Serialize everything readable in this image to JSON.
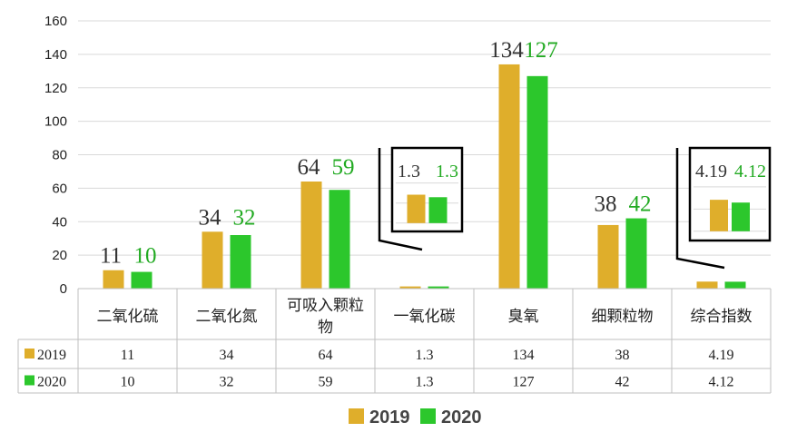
{
  "colors": {
    "2019": "#DFAE2B",
    "2020": "#2CC72C",
    "label_2020": "#22aa22",
    "grid": "#d9d9d9"
  },
  "chart_data": {
    "type": "bar",
    "categories": [
      "二氧化硫",
      "二氧化氮",
      "可吸入颗粒物",
      "一氧化碳",
      "臭氧",
      "细颗粒物",
      "综合指数"
    ],
    "series": [
      {
        "name": "2019",
        "values": [
          11,
          34,
          64,
          1.3,
          134,
          38,
          4.19
        ],
        "labels": [
          "11",
          "34",
          "64",
          "1.3",
          "134",
          "38",
          "4.19"
        ]
      },
      {
        "name": "2020",
        "values": [
          10,
          32,
          59,
          1.3,
          127,
          42,
          4.12
        ],
        "labels": [
          "10",
          "32",
          "59",
          "1.3",
          "127",
          "42",
          "4.12"
        ]
      }
    ],
    "ylim": [
      0,
      160
    ],
    "yticks": [
      "0",
      "20",
      "40",
      "60",
      "80",
      "100",
      "120",
      "140",
      "160"
    ],
    "grid": true,
    "legend_position": "bottom",
    "data_table": true,
    "insets": [
      {
        "category": "一氧化碳",
        "labels": [
          "1.3",
          "1.3"
        ]
      },
      {
        "category": "综合指数",
        "labels": [
          "4.19",
          "4.12"
        ]
      }
    ]
  }
}
